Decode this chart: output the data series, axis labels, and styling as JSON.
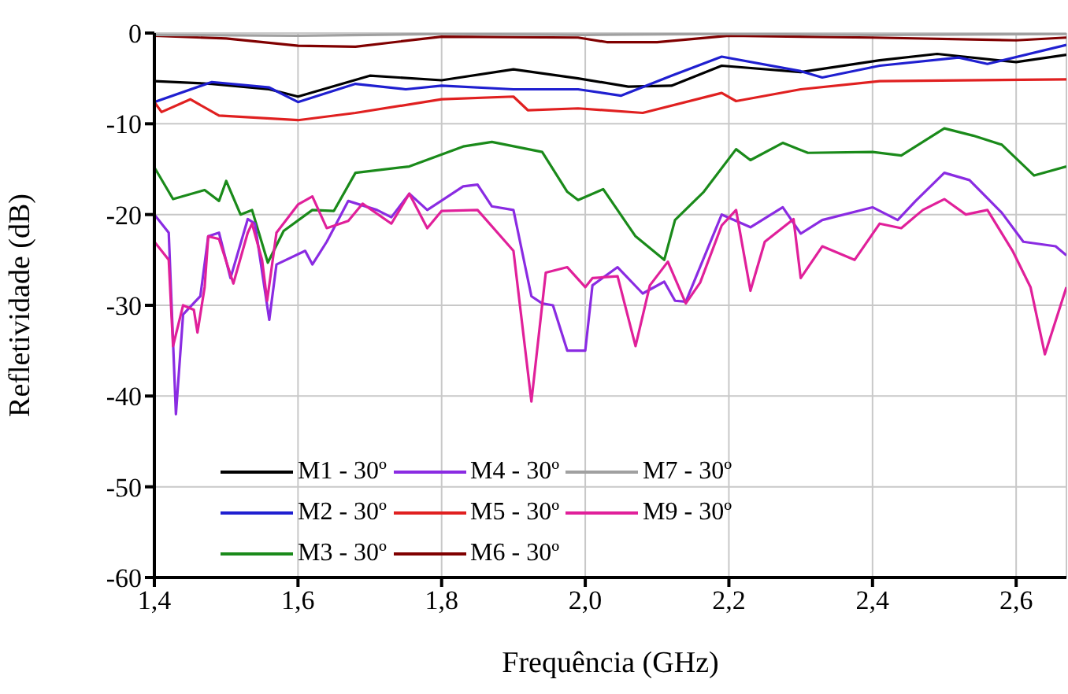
{
  "chart_data": {
    "type": "line",
    "xlabel": "Frequência (GHz)",
    "ylabel": "Refletividade (dB)",
    "xlim": [
      1.4,
      2.67
    ],
    "ylim": [
      -60,
      0
    ],
    "xticks": [
      {
        "value": 1.4,
        "label": "1,4"
      },
      {
        "value": 1.6,
        "label": "1,6"
      },
      {
        "value": 1.8,
        "label": "1,8"
      },
      {
        "value": 2.0,
        "label": "2,0"
      },
      {
        "value": 2.2,
        "label": "2,2"
      },
      {
        "value": 2.4,
        "label": "2,4"
      },
      {
        "value": 2.6,
        "label": "2,6"
      }
    ],
    "yticks": [
      -60,
      -50,
      -40,
      -30,
      -20,
      -10,
      0
    ],
    "grid": true,
    "legend": "bottom left",
    "line_style": "solid",
    "marker": "none",
    "series": [
      {
        "name": "M1 - 30º",
        "color": "#000000",
        "x": [
          1.4,
          1.48,
          1.56,
          1.6,
          1.7,
          1.8,
          1.9,
          1.99,
          2.06,
          2.12,
          2.19,
          2.3,
          2.41,
          2.49,
          2.6,
          2.67
        ],
        "values": [
          -5.3,
          -5.6,
          -6.2,
          -7.0,
          -4.7,
          -5.2,
          -4.0,
          -5.0,
          -5.9,
          -5.8,
          -3.6,
          -4.3,
          -3.0,
          -2.3,
          -3.2,
          -2.4
        ]
      },
      {
        "name": "M2 - 30º",
        "color": "#1f1fd0",
        "x": [
          1.4,
          1.48,
          1.56,
          1.6,
          1.68,
          1.75,
          1.8,
          1.9,
          1.99,
          2.05,
          2.12,
          2.19,
          2.3,
          2.33,
          2.41,
          2.52,
          2.56,
          2.67
        ],
        "values": [
          -7.6,
          -5.4,
          -6.0,
          -7.6,
          -5.6,
          -6.2,
          -5.8,
          -6.2,
          -6.2,
          -6.9,
          -4.7,
          -2.6,
          -4.2,
          -4.9,
          -3.6,
          -2.7,
          -3.4,
          -1.3
        ]
      },
      {
        "name": "M3 - 30º",
        "color": "#1a8a1a",
        "x": [
          1.4,
          1.426,
          1.47,
          1.49,
          1.5,
          1.52,
          1.536,
          1.558,
          1.58,
          1.62,
          1.65,
          1.68,
          1.755,
          1.83,
          1.87,
          1.94,
          1.975,
          1.99,
          2.025,
          2.07,
          2.11,
          2.125,
          2.165,
          2.21,
          2.23,
          2.275,
          2.31,
          2.4,
          2.44,
          2.5,
          2.54,
          2.58,
          2.625,
          2.67
        ],
        "values": [
          -14.8,
          -18.3,
          -17.3,
          -18.5,
          -16.3,
          -20.0,
          -19.5,
          -25.3,
          -21.8,
          -19.5,
          -19.6,
          -15.4,
          -14.7,
          -12.5,
          -12.0,
          -13.1,
          -17.5,
          -18.4,
          -17.2,
          -22.4,
          -25.0,
          -20.6,
          -17.5,
          -12.8,
          -14.0,
          -12.1,
          -13.2,
          -13.1,
          -13.5,
          -10.5,
          -11.3,
          -12.3,
          -15.7,
          -14.7
        ]
      },
      {
        "name": "M4 - 30º",
        "color": "#8a2be2",
        "x": [
          1.4,
          1.42,
          1.43,
          1.44,
          1.464,
          1.475,
          1.49,
          1.506,
          1.53,
          1.54,
          1.56,
          1.57,
          1.61,
          1.62,
          1.64,
          1.67,
          1.71,
          1.73,
          1.755,
          1.78,
          1.83,
          1.85,
          1.87,
          1.9,
          1.925,
          1.94,
          1.955,
          1.975,
          2.0,
          2.01,
          2.045,
          2.08,
          2.11,
          2.125,
          2.14,
          2.19,
          2.21,
          2.23,
          2.275,
          2.3,
          2.33,
          2.4,
          2.435,
          2.46,
          2.5,
          2.535,
          2.58,
          2.61,
          2.655,
          2.67
        ],
        "values": [
          -20.0,
          -22.0,
          -42.0,
          -31.0,
          -29.0,
          -22.4,
          -22.0,
          -27.0,
          -20.5,
          -21.0,
          -31.6,
          -25.5,
          -24.0,
          -25.5,
          -23.0,
          -18.5,
          -19.5,
          -20.3,
          -17.7,
          -19.5,
          -16.9,
          -16.7,
          -19.1,
          -19.5,
          -29.0,
          -29.8,
          -30.0,
          -35.0,
          -35.0,
          -27.8,
          -25.8,
          -28.7,
          -27.4,
          -29.5,
          -29.6,
          -20.0,
          -20.7,
          -21.4,
          -19.2,
          -22.1,
          -20.6,
          -19.2,
          -20.6,
          -18.5,
          -15.4,
          -16.2,
          -19.8,
          -23.0,
          -23.5,
          -24.5
        ]
      },
      {
        "name": "M5 - 30º",
        "color": "#e02020",
        "x": [
          1.4,
          1.41,
          1.45,
          1.49,
          1.6,
          1.68,
          1.8,
          1.9,
          1.92,
          1.99,
          2.08,
          2.19,
          2.21,
          2.3,
          2.41,
          2.67
        ],
        "values": [
          -7.6,
          -8.7,
          -7.3,
          -9.1,
          -9.6,
          -8.8,
          -7.3,
          -7.0,
          -8.5,
          -8.3,
          -8.8,
          -6.6,
          -7.5,
          -6.2,
          -5.3,
          -5.1
        ]
      },
      {
        "name": "M6 - 30º",
        "color": "#800000",
        "x": [
          1.4,
          1.5,
          1.6,
          1.68,
          1.8,
          1.99,
          2.03,
          2.1,
          2.2,
          2.4,
          2.6,
          2.67
        ],
        "values": [
          -0.3,
          -0.6,
          -1.4,
          -1.5,
          -0.4,
          -0.5,
          -1.0,
          -1.0,
          -0.3,
          -0.5,
          -0.8,
          -0.5
        ]
      },
      {
        "name": "M7 - 30º",
        "color": "#a0a0a0",
        "x": [
          1.4,
          1.6,
          1.8,
          2.0,
          2.2,
          2.4,
          2.67
        ],
        "values": [
          -0.2,
          -0.3,
          -0.1,
          -0.2,
          -0.1,
          -0.2,
          -0.1
        ]
      },
      {
        "name": "M9 - 30º",
        "color": "#e0209a",
        "x": [
          1.4,
          1.42,
          1.426,
          1.44,
          1.455,
          1.46,
          1.47,
          1.475,
          1.49,
          1.51,
          1.53,
          1.536,
          1.55,
          1.557,
          1.57,
          1.6,
          1.62,
          1.64,
          1.67,
          1.69,
          1.73,
          1.755,
          1.78,
          1.8,
          1.85,
          1.9,
          1.925,
          1.945,
          1.975,
          2.0,
          2.01,
          2.045,
          2.07,
          2.09,
          2.115,
          2.14,
          2.16,
          2.19,
          2.21,
          2.23,
          2.25,
          2.29,
          2.3,
          2.33,
          2.375,
          2.41,
          2.44,
          2.47,
          2.5,
          2.53,
          2.56,
          2.595,
          2.62,
          2.64,
          2.67
        ],
        "values": [
          -23.0,
          -25.0,
          -34.5,
          -30.0,
          -30.5,
          -33.0,
          -28.0,
          -22.4,
          -22.7,
          -27.6,
          -22.0,
          -21.0,
          -25.0,
          -29.5,
          -22.0,
          -18.9,
          -18.0,
          -21.5,
          -20.7,
          -18.8,
          -21.0,
          -17.7,
          -21.5,
          -19.6,
          -19.5,
          -24.0,
          -40.6,
          -26.4,
          -25.8,
          -28.0,
          -27.0,
          -26.8,
          -34.5,
          -27.8,
          -25.2,
          -29.8,
          -27.5,
          -21.2,
          -19.5,
          -28.4,
          -23.0,
          -20.5,
          -27.0,
          -23.5,
          -25.0,
          -21.0,
          -21.5,
          -19.5,
          -18.3,
          -20.0,
          -19.5,
          -24.0,
          -28.0,
          -35.4,
          -28.0
        ]
      }
    ]
  }
}
